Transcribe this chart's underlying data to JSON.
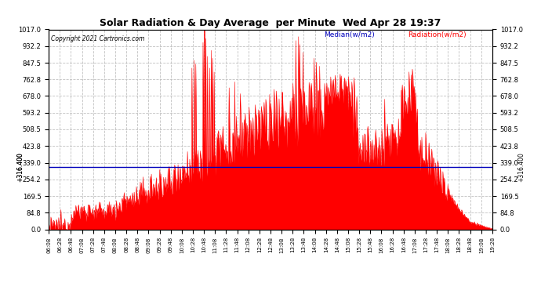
{
  "title": "Solar Radiation & Day Average  per Minute  Wed Apr 28 19:37",
  "copyright": "Copyright 2021 Cartronics.com",
  "legend_median": "Median(w/m2)",
  "legend_radiation": "Radiation(w/m2)",
  "median_value": 316.4,
  "y_ticks": [
    0.0,
    84.8,
    169.5,
    254.2,
    339.0,
    423.8,
    508.5,
    593.2,
    678.0,
    762.8,
    847.5,
    932.2,
    1017.0
  ],
  "y_min": 0.0,
  "y_max": 1017.0,
  "bar_color": "#ff0000",
  "median_color": "#0000bb",
  "title_color": "#000000",
  "copyright_color": "#000000",
  "background_color": "#ffffff",
  "grid_color": "#bbbbbb",
  "figwidth": 6.9,
  "figheight": 3.75,
  "dpi": 100
}
